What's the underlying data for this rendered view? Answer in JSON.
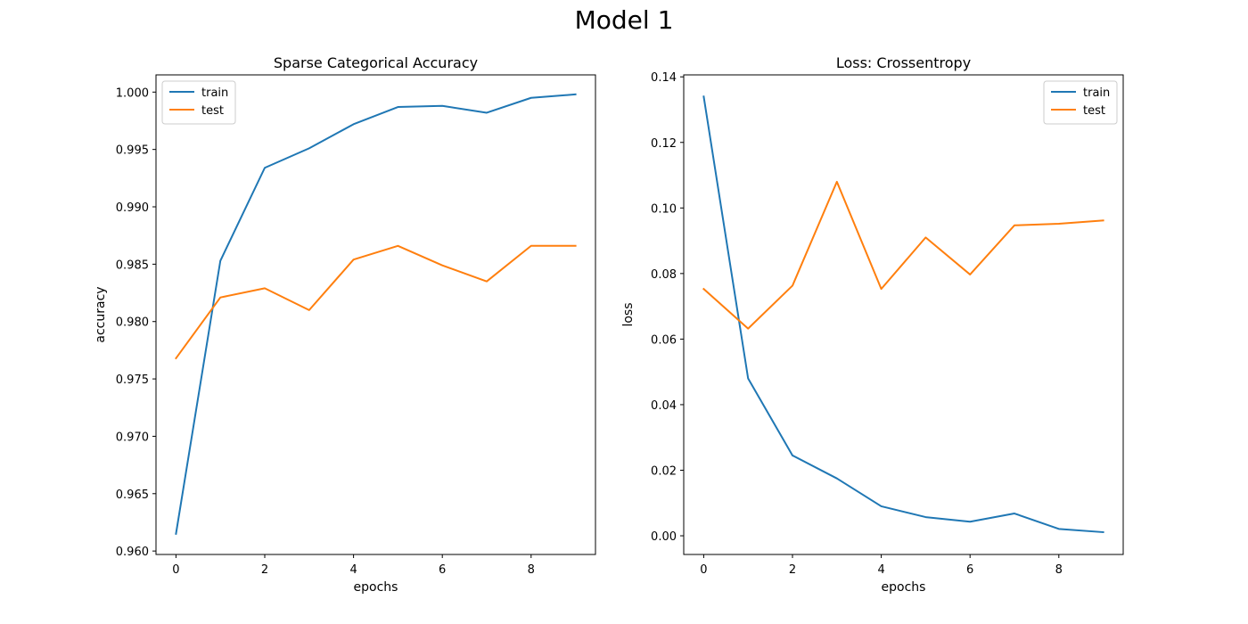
{
  "figure": {
    "title": "Model 1"
  },
  "chart_data": [
    {
      "type": "line",
      "title": "Sparse Categorical Accuracy",
      "xlabel": "epochs",
      "ylabel": "accuracy",
      "x": [
        0,
        1,
        2,
        3,
        4,
        5,
        6,
        7,
        8,
        9
      ],
      "xlim": [
        -0.45,
        9.45
      ],
      "ylim": [
        0.9597,
        1.0015
      ],
      "xticks": [
        0,
        2,
        4,
        6,
        8
      ],
      "yticks": [
        0.96,
        0.965,
        0.97,
        0.975,
        0.98,
        0.985,
        0.99,
        0.995,
        1.0
      ],
      "ytick_labels": [
        "0.960",
        "0.965",
        "0.970",
        "0.975",
        "0.980",
        "0.985",
        "0.990",
        "0.995",
        "1.000"
      ],
      "legend_position": "upper-left",
      "grid": false,
      "series": [
        {
          "name": "train",
          "color": "#1f77b4",
          "values": [
            0.9615,
            0.9853,
            0.9934,
            0.9951,
            0.9972,
            0.9987,
            0.9988,
            0.9982,
            0.9995,
            0.9998
          ]
        },
        {
          "name": "test",
          "color": "#ff7f0e",
          "values": [
            0.9768,
            0.9821,
            0.9829,
            0.981,
            0.9854,
            0.9866,
            0.9849,
            0.9835,
            0.9866,
            0.9866
          ]
        }
      ]
    },
    {
      "type": "line",
      "title": "Loss: Crossentropy",
      "xlabel": "epochs",
      "ylabel": "loss",
      "x": [
        0,
        1,
        2,
        3,
        4,
        5,
        6,
        7,
        8,
        9
      ],
      "xlim": [
        -0.45,
        9.45
      ],
      "ylim": [
        -0.0057,
        0.1406
      ],
      "xticks": [
        0,
        2,
        4,
        6,
        8
      ],
      "yticks": [
        0.0,
        0.02,
        0.04,
        0.06,
        0.08,
        0.1,
        0.12,
        0.14
      ],
      "ytick_labels": [
        "0.00",
        "0.02",
        "0.04",
        "0.06",
        "0.08",
        "0.10",
        "0.12",
        "0.14"
      ],
      "legend_position": "upper-right",
      "grid": false,
      "series": [
        {
          "name": "train",
          "color": "#1f77b4",
          "values": [
            0.134,
            0.048,
            0.0245,
            0.0175,
            0.009,
            0.0057,
            0.0043,
            0.0068,
            0.0021,
            0.0011
          ]
        },
        {
          "name": "test",
          "color": "#ff7f0e",
          "values": [
            0.0753,
            0.0632,
            0.0763,
            0.108,
            0.0753,
            0.091,
            0.0797,
            0.0947,
            0.0952,
            0.0962
          ]
        }
      ]
    }
  ]
}
